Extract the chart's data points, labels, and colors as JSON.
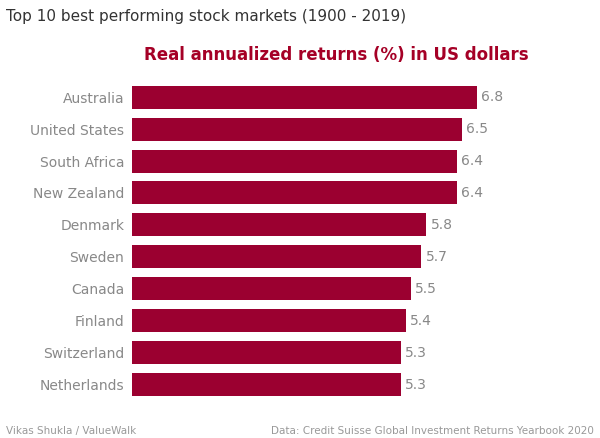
{
  "title": "Top 10 best performing stock markets (1900 - 2019)",
  "subtitle": "Real annualized returns (%) in US dollars",
  "subtitle_color": "#A50026",
  "title_color": "#333333",
  "footer_left": "Vikas Shukla / ValueWalk",
  "footer_right": "Data: Credit Suisse Global Investment Returns Yearbook 2020",
  "categories": [
    "Netherlands",
    "Switzerland",
    "Finland",
    "Canada",
    "Sweden",
    "Denmark",
    "New Zealand",
    "South Africa",
    "United States",
    "Australia"
  ],
  "values": [
    5.3,
    5.3,
    5.4,
    5.5,
    5.7,
    5.8,
    6.4,
    6.4,
    6.5,
    6.8
  ],
  "bar_color": "#9B0030",
  "label_color": "#888888",
  "value_color": "#888888",
  "background_color": "#FFFFFF",
  "bar_height": 0.72,
  "xlim": [
    0,
    7.8
  ],
  "title_fontsize": 11,
  "subtitle_fontsize": 12,
  "label_fontsize": 10,
  "value_fontsize": 10,
  "footer_fontsize": 7.5
}
